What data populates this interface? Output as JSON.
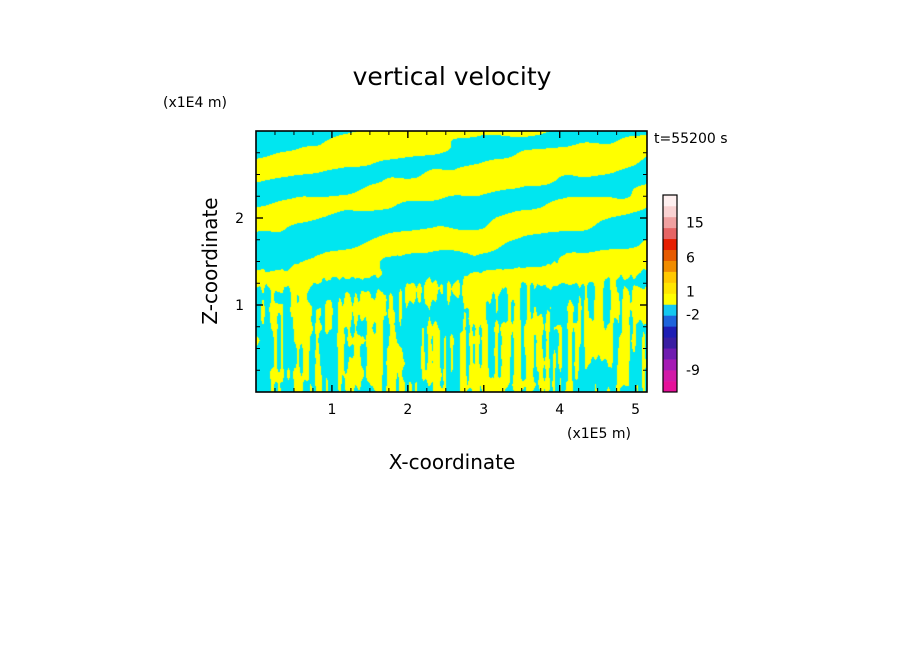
{
  "chart_data": {
    "type": "heatmap",
    "title": "vertical velocity",
    "xlabel": "X-coordinate",
    "ylabel": "Z-coordinate",
    "x_multiplier": "(x1E5 m)",
    "y_multiplier": "(x1E4 m)",
    "time_label": "t=55200 s",
    "xlim": [
      0,
      5.15
    ],
    "ylim": [
      0,
      3.0
    ],
    "x_ticks": [
      {
        "value": 1,
        "label": "1"
      },
      {
        "value": 2,
        "label": "2"
      },
      {
        "value": 3,
        "label": "3"
      },
      {
        "value": 4,
        "label": "4"
      },
      {
        "value": 5,
        "label": "5"
      }
    ],
    "y_ticks": [
      {
        "value": 1,
        "label": "1"
      },
      {
        "value": 2,
        "label": "2"
      }
    ],
    "colorbar": {
      "levels": [
        {
          "color": "#e6119a"
        },
        {
          "color": "#d21aa8"
        },
        {
          "color": "#a51ab4"
        },
        {
          "color": "#6f1cb0"
        },
        {
          "color": "#3a1ea2"
        },
        {
          "color": "#1e1eb4"
        },
        {
          "color": "#1e64dc"
        },
        {
          "color": "#14c8f0"
        },
        {
          "color": "#ffff00"
        },
        {
          "color": "#ffe600"
        },
        {
          "color": "#ffc800"
        },
        {
          "color": "#f08c00"
        },
        {
          "color": "#e65a00"
        },
        {
          "color": "#e61e00"
        },
        {
          "color": "#e66464"
        },
        {
          "color": "#f0a0a0"
        },
        {
          "color": "#fad2d2"
        },
        {
          "color": "#fff0f0"
        }
      ],
      "labels": [
        {
          "text": "15",
          "index": 15.5
        },
        {
          "text": "6",
          "index": 12.3
        },
        {
          "text": "1",
          "index": 9.2
        },
        {
          "text": "-2",
          "index": 7.1
        },
        {
          "text": "-9",
          "index": 2.0
        }
      ]
    },
    "field_colors": {
      "positive": "#ffff00",
      "negative": "#00e6f0"
    }
  }
}
